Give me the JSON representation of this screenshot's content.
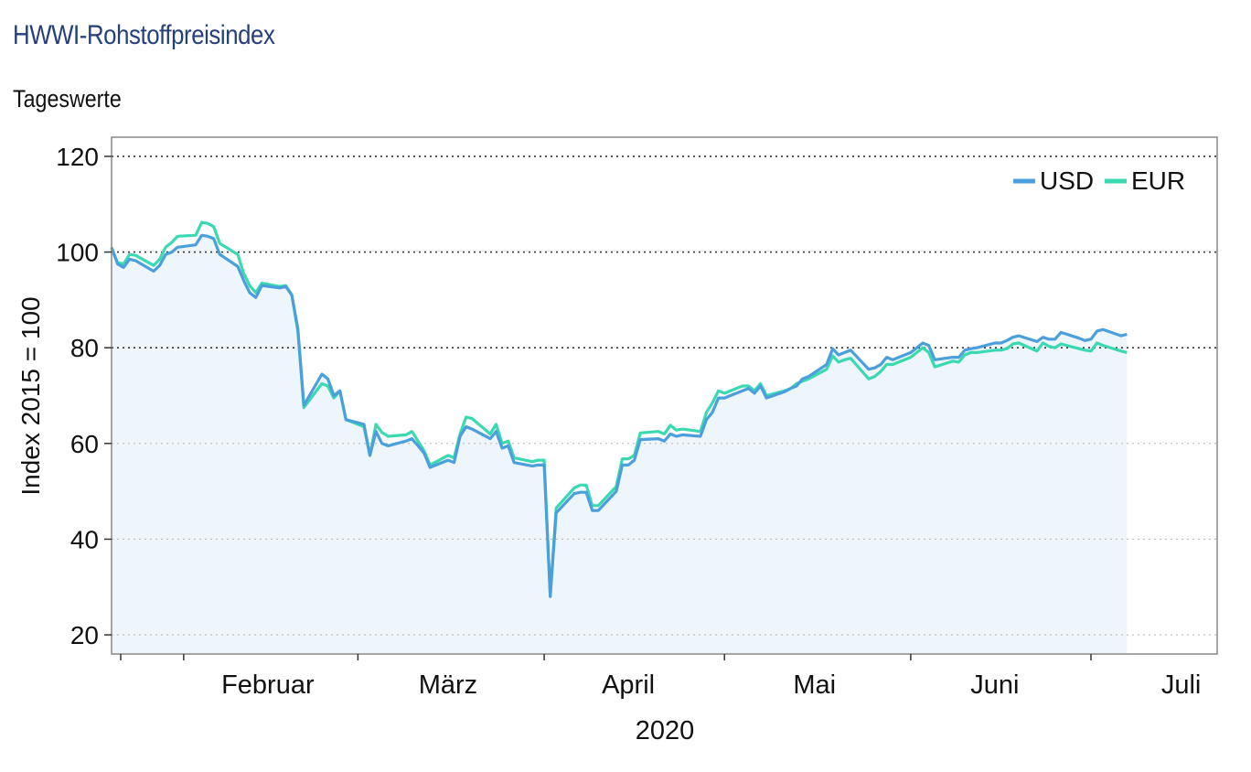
{
  "header": {
    "title": "HWWI-Rohstoffpreisindex",
    "subtitle": "Tageswerte"
  },
  "chart_data": {
    "type": "line",
    "title": "HWWI-Rohstoffpreisindex",
    "subtitle": "Tageswerte",
    "xlabel": "2020",
    "ylabel": "Index 2015 = 100",
    "ylim": [
      16,
      124
    ],
    "yticks": [
      20,
      40,
      60,
      80,
      100,
      120
    ],
    "xlim": [
      "2020-01-20",
      "2020-07-22"
    ],
    "month_labels": [
      {
        "label": "Februar",
        "date": "2020-02-15"
      },
      {
        "label": "März",
        "date": "2020-03-16"
      },
      {
        "label": "April",
        "date": "2020-04-15"
      },
      {
        "label": "Mai",
        "date": "2020-05-16"
      },
      {
        "label": "Juni",
        "date": "2020-06-15"
      },
      {
        "label": "Juli",
        "date": "2020-07-16"
      }
    ],
    "month_ticks": [
      "2020-02-01",
      "2020-03-01",
      "2020-04-01",
      "2020-05-01",
      "2020-06-01",
      "2020-07-01"
    ],
    "grid": "horizontal dotted",
    "legend_position": "top-right",
    "area_fill": "#eef6fb",
    "series": [
      {
        "name": "USD",
        "color": "#4a9fdc",
        "points": [
          [
            "2020-01-20",
            101.0
          ],
          [
            "2020-01-21",
            97.5
          ],
          [
            "2020-01-22",
            96.8
          ],
          [
            "2020-01-23",
            98.5
          ],
          [
            "2020-01-24",
            98.2
          ],
          [
            "2020-01-27",
            96.0
          ],
          [
            "2020-01-28",
            97.2
          ],
          [
            "2020-01-29",
            99.5
          ],
          [
            "2020-01-30",
            100.0
          ],
          [
            "2020-01-31",
            101.0
          ],
          [
            "2020-02-03",
            101.5
          ],
          [
            "2020-02-04",
            103.5
          ],
          [
            "2020-02-05",
            103.3
          ],
          [
            "2020-02-06",
            102.8
          ],
          [
            "2020-02-07",
            99.5
          ],
          [
            "2020-02-10",
            97.0
          ],
          [
            "2020-02-11",
            94.0
          ],
          [
            "2020-02-12",
            91.5
          ],
          [
            "2020-02-13",
            90.5
          ],
          [
            "2020-02-14",
            93.0
          ],
          [
            "2020-02-17",
            92.5
          ],
          [
            "2020-02-18",
            92.8
          ],
          [
            "2020-02-19",
            91.0
          ],
          [
            "2020-02-20",
            84.0
          ],
          [
            "2020-02-21",
            68.0
          ],
          [
            "2020-02-24",
            74.5
          ],
          [
            "2020-02-25",
            73.5
          ],
          [
            "2020-02-26",
            70.0
          ],
          [
            "2020-02-27",
            71.0
          ],
          [
            "2020-02-28",
            65.0
          ],
          [
            "2020-03-02",
            64.0
          ],
          [
            "2020-03-03",
            57.5
          ],
          [
            "2020-03-04",
            62.5
          ],
          [
            "2020-03-05",
            60.0
          ],
          [
            "2020-03-06",
            59.5
          ],
          [
            "2020-03-09",
            60.5
          ],
          [
            "2020-03-10",
            61.0
          ],
          [
            "2020-03-11",
            59.5
          ],
          [
            "2020-03-12",
            58.0
          ],
          [
            "2020-03-13",
            55.0
          ],
          [
            "2020-03-16",
            56.5
          ],
          [
            "2020-03-17",
            56.0
          ],
          [
            "2020-03-18",
            61.5
          ],
          [
            "2020-03-19",
            63.5
          ],
          [
            "2020-03-20",
            63.0
          ],
          [
            "2020-03-23",
            61.0
          ],
          [
            "2020-03-24",
            62.5
          ],
          [
            "2020-03-25",
            59.0
          ],
          [
            "2020-03-26",
            59.5
          ],
          [
            "2020-03-27",
            56.0
          ],
          [
            "2020-03-30",
            55.3
          ],
          [
            "2020-03-31",
            55.5
          ],
          [
            "2020-04-01",
            55.5
          ],
          [
            "2020-04-02",
            28.0
          ],
          [
            "2020-04-03",
            45.5
          ],
          [
            "2020-04-06",
            49.5
          ],
          [
            "2020-04-07",
            49.8
          ],
          [
            "2020-04-08",
            49.8
          ],
          [
            "2020-04-09",
            46.0
          ],
          [
            "2020-04-10",
            46.0
          ],
          [
            "2020-04-13",
            50.0
          ],
          [
            "2020-04-14",
            55.5
          ],
          [
            "2020-04-15",
            55.5
          ],
          [
            "2020-04-16",
            56.5
          ],
          [
            "2020-04-17",
            60.8
          ],
          [
            "2020-04-20",
            61.0
          ],
          [
            "2020-04-21",
            60.5
          ],
          [
            "2020-04-22",
            62.0
          ],
          [
            "2020-04-23",
            61.5
          ],
          [
            "2020-04-24",
            61.8
          ],
          [
            "2020-04-27",
            61.5
          ],
          [
            "2020-04-28",
            65.0
          ],
          [
            "2020-04-29",
            66.5
          ],
          [
            "2020-04-30",
            69.5
          ],
          [
            "2020-05-01",
            69.5
          ],
          [
            "2020-05-04",
            71.0
          ],
          [
            "2020-05-05",
            71.5
          ],
          [
            "2020-05-06",
            70.5
          ],
          [
            "2020-05-07",
            72.0
          ],
          [
            "2020-05-08",
            69.5
          ],
          [
            "2020-05-11",
            70.8
          ],
          [
            "2020-05-12",
            71.5
          ],
          [
            "2020-05-13",
            72.0
          ],
          [
            "2020-05-14",
            73.5
          ],
          [
            "2020-05-15",
            74.0
          ],
          [
            "2020-05-18",
            76.5
          ],
          [
            "2020-05-19",
            79.8
          ],
          [
            "2020-05-20",
            78.5
          ],
          [
            "2020-05-21",
            79.0
          ],
          [
            "2020-05-22",
            79.5
          ],
          [
            "2020-05-25",
            75.5
          ],
          [
            "2020-05-26",
            75.8
          ],
          [
            "2020-05-27",
            76.5
          ],
          [
            "2020-05-28",
            78.0
          ],
          [
            "2020-05-29",
            77.5
          ],
          [
            "2020-06-01",
            79.0
          ],
          [
            "2020-06-02",
            80.0
          ],
          [
            "2020-06-03",
            81.0
          ],
          [
            "2020-06-04",
            80.5
          ],
          [
            "2020-06-05",
            77.5
          ],
          [
            "2020-06-08",
            78.0
          ],
          [
            "2020-06-09",
            78.0
          ],
          [
            "2020-06-10",
            79.5
          ],
          [
            "2020-06-11",
            79.8
          ],
          [
            "2020-06-12",
            80.0
          ],
          [
            "2020-06-15",
            81.0
          ],
          [
            "2020-06-16",
            81.0
          ],
          [
            "2020-06-17",
            81.5
          ],
          [
            "2020-06-18",
            82.2
          ],
          [
            "2020-06-19",
            82.5
          ],
          [
            "2020-06-22",
            81.3
          ],
          [
            "2020-06-23",
            82.2
          ],
          [
            "2020-06-24",
            81.8
          ],
          [
            "2020-06-25",
            81.8
          ],
          [
            "2020-06-26",
            83.2
          ],
          [
            "2020-06-29",
            82.0
          ],
          [
            "2020-06-30",
            81.5
          ],
          [
            "2020-07-01",
            81.8
          ],
          [
            "2020-07-02",
            83.5
          ],
          [
            "2020-07-03",
            83.8
          ],
          [
            "2020-07-06",
            82.5
          ],
          [
            "2020-07-07",
            82.8
          ]
        ]
      },
      {
        "name": "EUR",
        "color": "#3ad9b2",
        "points": [
          [
            "2020-01-20",
            100.8
          ],
          [
            "2020-01-21",
            97.8
          ],
          [
            "2020-01-22",
            97.5
          ],
          [
            "2020-01-23",
            99.5
          ],
          [
            "2020-01-24",
            99.3
          ],
          [
            "2020-01-27",
            97.2
          ],
          [
            "2020-01-28",
            98.5
          ],
          [
            "2020-01-29",
            101.0
          ],
          [
            "2020-01-30",
            102.0
          ],
          [
            "2020-01-31",
            103.3
          ],
          [
            "2020-02-03",
            103.5
          ],
          [
            "2020-02-04",
            106.2
          ],
          [
            "2020-02-05",
            106.0
          ],
          [
            "2020-02-06",
            105.3
          ],
          [
            "2020-02-07",
            101.8
          ],
          [
            "2020-02-10",
            99.5
          ],
          [
            "2020-02-11",
            95.5
          ],
          [
            "2020-02-12",
            93.0
          ],
          [
            "2020-02-13",
            91.5
          ],
          [
            "2020-02-14",
            93.5
          ],
          [
            "2020-02-17",
            92.8
          ],
          [
            "2020-02-18",
            93.0
          ],
          [
            "2020-02-19",
            91.0
          ],
          [
            "2020-02-20",
            83.5
          ],
          [
            "2020-02-21",
            67.5
          ],
          [
            "2020-02-24",
            72.5
          ],
          [
            "2020-02-25",
            72.0
          ],
          [
            "2020-02-26",
            69.5
          ],
          [
            "2020-02-27",
            71.0
          ],
          [
            "2020-02-28",
            65.0
          ],
          [
            "2020-03-02",
            63.5
          ],
          [
            "2020-03-03",
            57.5
          ],
          [
            "2020-03-04",
            64.0
          ],
          [
            "2020-03-05",
            62.3
          ],
          [
            "2020-03-06",
            61.5
          ],
          [
            "2020-03-09",
            61.8
          ],
          [
            "2020-03-10",
            62.5
          ],
          [
            "2020-03-11",
            60.5
          ],
          [
            "2020-03-12",
            58.5
          ],
          [
            "2020-03-13",
            55.5
          ],
          [
            "2020-03-16",
            57.5
          ],
          [
            "2020-03-17",
            57.0
          ],
          [
            "2020-03-18",
            62.0
          ],
          [
            "2020-03-19",
            65.5
          ],
          [
            "2020-03-20",
            65.2
          ],
          [
            "2020-03-23",
            62.0
          ],
          [
            "2020-03-24",
            64.0
          ],
          [
            "2020-03-25",
            60.0
          ],
          [
            "2020-03-26",
            60.5
          ],
          [
            "2020-03-27",
            57.0
          ],
          [
            "2020-03-30",
            56.2
          ],
          [
            "2020-03-31",
            56.5
          ],
          [
            "2020-04-01",
            56.5
          ],
          [
            "2020-04-02",
            28.3
          ],
          [
            "2020-04-03",
            46.5
          ],
          [
            "2020-04-06",
            50.7
          ],
          [
            "2020-04-07",
            51.3
          ],
          [
            "2020-04-08",
            51.3
          ],
          [
            "2020-04-09",
            47.0
          ],
          [
            "2020-04-10",
            47.0
          ],
          [
            "2020-04-13",
            51.0
          ],
          [
            "2020-04-14",
            56.8
          ],
          [
            "2020-04-15",
            56.8
          ],
          [
            "2020-04-16",
            57.5
          ],
          [
            "2020-04-17",
            62.2
          ],
          [
            "2020-04-20",
            62.5
          ],
          [
            "2020-04-21",
            62.0
          ],
          [
            "2020-04-22",
            63.8
          ],
          [
            "2020-04-23",
            62.8
          ],
          [
            "2020-04-24",
            63.0
          ],
          [
            "2020-04-27",
            62.5
          ],
          [
            "2020-04-28",
            66.5
          ],
          [
            "2020-04-29",
            68.5
          ],
          [
            "2020-04-30",
            71.0
          ],
          [
            "2020-05-01",
            70.5
          ],
          [
            "2020-05-04",
            72.0
          ],
          [
            "2020-05-05",
            72.0
          ],
          [
            "2020-05-06",
            71.0
          ],
          [
            "2020-05-07",
            72.5
          ],
          [
            "2020-05-08",
            70.0
          ],
          [
            "2020-05-11",
            71.0
          ],
          [
            "2020-05-12",
            71.5
          ],
          [
            "2020-05-13",
            72.5
          ],
          [
            "2020-05-14",
            73.0
          ],
          [
            "2020-05-15",
            73.5
          ],
          [
            "2020-05-18",
            75.5
          ],
          [
            "2020-05-19",
            78.3
          ],
          [
            "2020-05-20",
            77.0
          ],
          [
            "2020-05-21",
            77.5
          ],
          [
            "2020-05-22",
            77.8
          ],
          [
            "2020-05-25",
            73.5
          ],
          [
            "2020-05-26",
            74.0
          ],
          [
            "2020-05-27",
            75.0
          ],
          [
            "2020-05-28",
            76.5
          ],
          [
            "2020-05-29",
            76.5
          ],
          [
            "2020-06-01",
            78.0
          ],
          [
            "2020-06-02",
            79.0
          ],
          [
            "2020-06-03",
            80.0
          ],
          [
            "2020-06-04",
            79.0
          ],
          [
            "2020-06-05",
            76.0
          ],
          [
            "2020-06-08",
            77.2
          ],
          [
            "2020-06-09",
            77.0
          ],
          [
            "2020-06-10",
            78.5
          ],
          [
            "2020-06-11",
            79.0
          ],
          [
            "2020-06-12",
            79.0
          ],
          [
            "2020-06-15",
            79.5
          ],
          [
            "2020-06-16",
            79.5
          ],
          [
            "2020-06-17",
            79.8
          ],
          [
            "2020-06-18",
            80.8
          ],
          [
            "2020-06-19",
            81.0
          ],
          [
            "2020-06-22",
            79.3
          ],
          [
            "2020-06-23",
            81.0
          ],
          [
            "2020-06-24",
            80.3
          ],
          [
            "2020-06-25",
            80.0
          ],
          [
            "2020-06-26",
            80.8
          ],
          [
            "2020-06-29",
            79.8
          ],
          [
            "2020-06-30",
            79.5
          ],
          [
            "2020-07-01",
            79.3
          ],
          [
            "2020-07-02",
            81.0
          ],
          [
            "2020-07-03",
            80.5
          ],
          [
            "2020-07-06",
            79.3
          ],
          [
            "2020-07-07",
            79.0
          ]
        ]
      }
    ]
  }
}
